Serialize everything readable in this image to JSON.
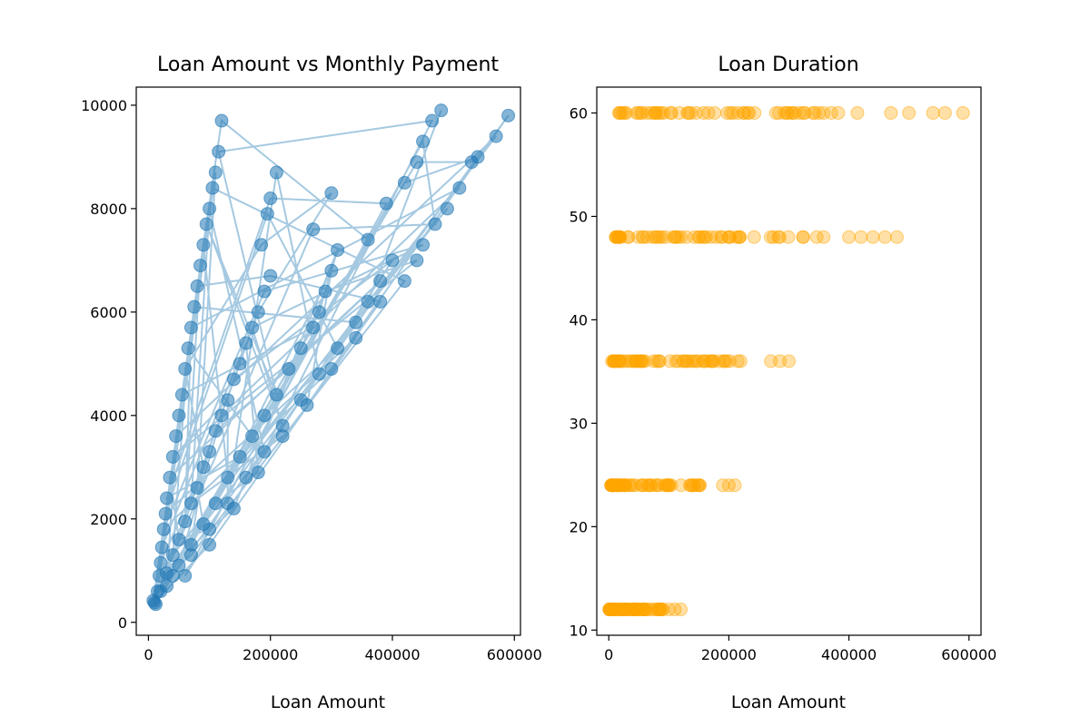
{
  "colors": {
    "left_series": "#1f77b4",
    "right_series": "#ffa500",
    "axes": "#000000",
    "background": "#ffffff"
  },
  "chart_data": [
    {
      "type": "line",
      "title": "Loan Amount vs Monthly Payment",
      "xlabel": "Loan Amount",
      "ylabel": "",
      "xlim": [
        -20000,
        610000
      ],
      "ylim": [
        -250,
        10350
      ],
      "xticks": [
        0,
        200000,
        400000,
        600000
      ],
      "xtick_labels": [
        "0",
        "200000",
        "400000",
        "600000"
      ],
      "yticks": [
        0,
        2000,
        4000,
        6000,
        8000,
        10000
      ],
      "ytick_labels": [
        "0",
        "2000",
        "4000",
        "6000",
        "8000",
        "10000"
      ],
      "grid": false,
      "markers": "circle",
      "connected_in_random_order": true,
      "series": [
        {
          "values": "loan amount → monthly payment",
          "points": [
            [
              8000,
              420
            ],
            [
              10000,
              380
            ],
            [
              12000,
              350
            ],
            [
              15000,
              600
            ],
            [
              18000,
              900
            ],
            [
              20000,
              1150
            ],
            [
              22000,
              1450
            ],
            [
              25000,
              1800
            ],
            [
              28000,
              2100
            ],
            [
              30000,
              2400
            ],
            [
              35000,
              2800
            ],
            [
              40000,
              3200
            ],
            [
              45000,
              3600
            ],
            [
              50000,
              4000
            ],
            [
              55000,
              4400
            ],
            [
              60000,
              4900
            ],
            [
              65000,
              5300
            ],
            [
              70000,
              5700
            ],
            [
              75000,
              6100
            ],
            [
              80000,
              6500
            ],
            [
              85000,
              6900
            ],
            [
              90000,
              7300
            ],
            [
              95000,
              7700
            ],
            [
              100000,
              8000
            ],
            [
              105000,
              8400
            ],
            [
              110000,
              8700
            ],
            [
              115000,
              9100
            ],
            [
              120000,
              9700
            ],
            [
              20000,
              600
            ],
            [
              30000,
              950
            ],
            [
              40000,
              1300
            ],
            [
              50000,
              1600
            ],
            [
              60000,
              1950
            ],
            [
              70000,
              2300
            ],
            [
              80000,
              2600
            ],
            [
              90000,
              3000
            ],
            [
              100000,
              3300
            ],
            [
              110000,
              3700
            ],
            [
              120000,
              4000
            ],
            [
              130000,
              4300
            ],
            [
              140000,
              4700
            ],
            [
              150000,
              5000
            ],
            [
              160000,
              5400
            ],
            [
              170000,
              5700
            ],
            [
              180000,
              6000
            ],
            [
              190000,
              6400
            ],
            [
              200000,
              6700
            ],
            [
              185000,
              7300
            ],
            [
              195000,
              7900
            ],
            [
              200000,
              8200
            ],
            [
              210000,
              8700
            ],
            [
              30000,
              700
            ],
            [
              50000,
              1100
            ],
            [
              70000,
              1500
            ],
            [
              90000,
              1900
            ],
            [
              110000,
              2300
            ],
            [
              130000,
              2800
            ],
            [
              150000,
              3200
            ],
            [
              170000,
              3600
            ],
            [
              190000,
              4000
            ],
            [
              210000,
              4400
            ],
            [
              230000,
              4900
            ],
            [
              250000,
              5300
            ],
            [
              270000,
              5700
            ],
            [
              280000,
              6000
            ],
            [
              290000,
              6400
            ],
            [
              300000,
              6800
            ],
            [
              310000,
              7200
            ],
            [
              270000,
              7600
            ],
            [
              300000,
              8300
            ],
            [
              40000,
              900
            ],
            [
              70000,
              1300
            ],
            [
              100000,
              1800
            ],
            [
              130000,
              2300
            ],
            [
              160000,
              2800
            ],
            [
              190000,
              3300
            ],
            [
              220000,
              3800
            ],
            [
              250000,
              4300
            ],
            [
              280000,
              4800
            ],
            [
              310000,
              5300
            ],
            [
              340000,
              5800
            ],
            [
              360000,
              6200
            ],
            [
              380000,
              6600
            ],
            [
              400000,
              7000
            ],
            [
              360000,
              7400
            ],
            [
              390000,
              8100
            ],
            [
              420000,
              8500
            ],
            [
              440000,
              8900
            ],
            [
              450000,
              9300
            ],
            [
              465000,
              9700
            ],
            [
              480000,
              9900
            ],
            [
              60000,
              900
            ],
            [
              100000,
              1500
            ],
            [
              140000,
              2200
            ],
            [
              180000,
              2900
            ],
            [
              220000,
              3600
            ],
            [
              260000,
              4200
            ],
            [
              300000,
              4900
            ],
            [
              340000,
              5500
            ],
            [
              380000,
              6200
            ],
            [
              420000,
              6600
            ],
            [
              440000,
              7000
            ],
            [
              450000,
              7300
            ],
            [
              470000,
              7700
            ],
            [
              490000,
              8000
            ],
            [
              510000,
              8400
            ],
            [
              530000,
              8900
            ],
            [
              540000,
              9000
            ],
            [
              570000,
              9400
            ],
            [
              590000,
              9800
            ]
          ]
        }
      ]
    },
    {
      "type": "scatter",
      "title": "Loan Duration",
      "xlabel": "Loan Amount",
      "ylabel": "",
      "xlim": [
        -20000,
        620000
      ],
      "ylim": [
        9.5,
        62.5
      ],
      "xticks": [
        0,
        200000,
        400000,
        600000
      ],
      "xtick_labels": [
        "0",
        "200000",
        "400000",
        "600000"
      ],
      "yticks": [
        10,
        20,
        30,
        40,
        50,
        60
      ],
      "ytick_labels": [
        "10",
        "20",
        "30",
        "40",
        "50",
        "60"
      ],
      "grid": false,
      "series": [
        {
          "values": "loan amount → duration",
          "groups": [
            {
              "y": 60,
              "x_min": 15000,
              "x_max": 590000,
              "extra_x": [
                470000,
                500000,
                540000,
                560000,
                590000
              ]
            },
            {
              "y": 48,
              "x_min": 10000,
              "x_max": 480000,
              "extra_x": [
                400000,
                420000,
                440000,
                460000,
                480000
              ]
            },
            {
              "y": 36,
              "x_min": 5000,
              "x_max": 300000,
              "extra_x": [
                270000,
                285000,
                300000
              ]
            },
            {
              "y": 24,
              "x_min": 3000,
              "x_max": 210000,
              "extra_x": [
                190000,
                200000,
                210000
              ]
            },
            {
              "y": 12,
              "x_min": 1000,
              "x_max": 120000,
              "extra_x": [
                100000,
                110000,
                120000
              ]
            }
          ]
        }
      ]
    }
  ]
}
